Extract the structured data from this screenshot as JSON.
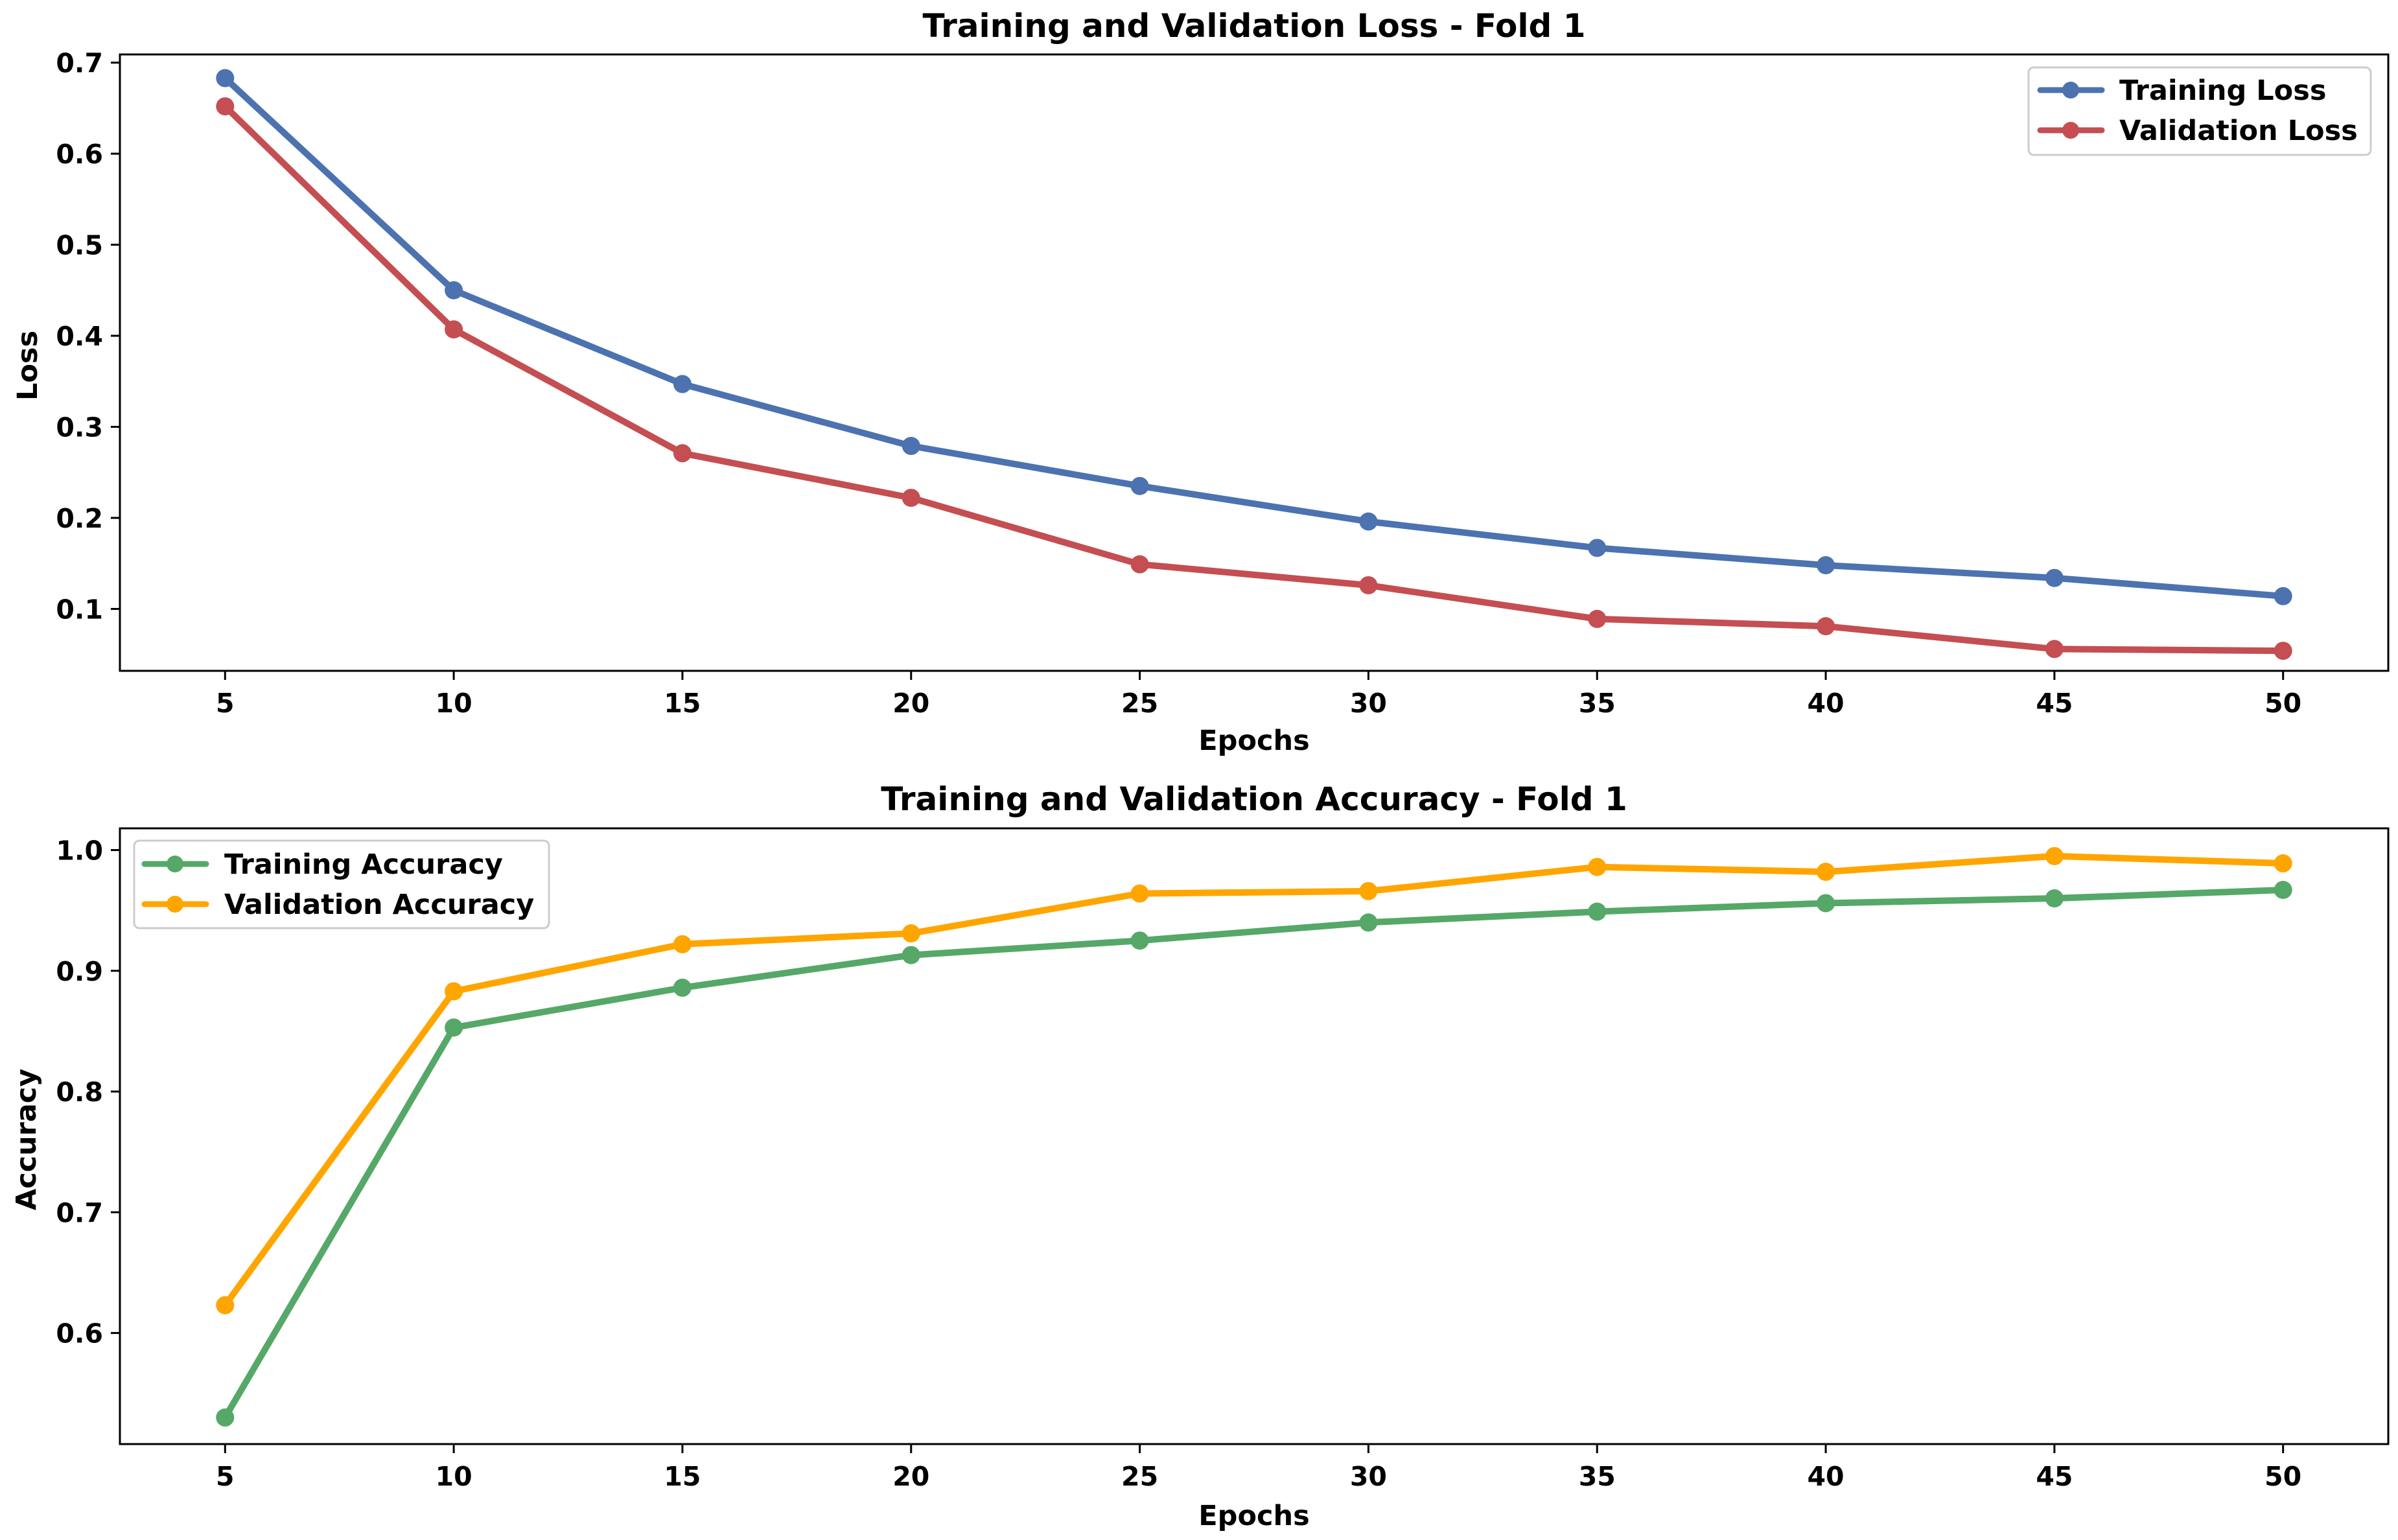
{
  "chart_data": [
    {
      "type": "line",
      "title": "Training and Validation Loss - Fold 1",
      "xlabel": "Epochs",
      "ylabel": "Loss",
      "x": [
        5,
        10,
        15,
        20,
        25,
        30,
        35,
        40,
        45,
        50
      ],
      "xlim": [
        2.7,
        52.3
      ],
      "ylim": [
        0.032,
        0.709
      ],
      "xticks": [
        5,
        10,
        15,
        20,
        25,
        30,
        35,
        40,
        45,
        50
      ],
      "yticks": [
        0.1,
        0.2,
        0.3,
        0.4,
        0.5,
        0.6,
        0.7
      ],
      "ytick_labels": [
        "0.1",
        "0.2",
        "0.3",
        "0.4",
        "0.5",
        "0.6",
        "0.7"
      ],
      "grid": false,
      "legend_position": "top-right",
      "series": [
        {
          "name": "Training Loss",
          "color": "#4c72b0",
          "values": [
            0.683,
            0.45,
            0.347,
            0.279,
            0.235,
            0.196,
            0.167,
            0.148,
            0.134,
            0.114
          ]
        },
        {
          "name": "Validation Loss",
          "color": "#c44e52",
          "values": [
            0.652,
            0.407,
            0.271,
            0.222,
            0.149,
            0.126,
            0.089,
            0.081,
            0.056,
            0.054
          ]
        }
      ]
    },
    {
      "type": "line",
      "title": "Training and Validation Accuracy - Fold 1",
      "xlabel": "Epochs",
      "ylabel": "Accuracy",
      "x": [
        5,
        10,
        15,
        20,
        25,
        30,
        35,
        40,
        45,
        50
      ],
      "xlim": [
        2.7,
        52.3
      ],
      "ylim": [
        0.508,
        1.018
      ],
      "xticks": [
        5,
        10,
        15,
        20,
        25,
        30,
        35,
        40,
        45,
        50
      ],
      "yticks": [
        0.6,
        0.7,
        0.8,
        0.9,
        1.0
      ],
      "ytick_labels": [
        "0.6",
        "0.7",
        "0.8",
        "0.9",
        "1.0"
      ],
      "grid": false,
      "legend_position": "top-left",
      "series": [
        {
          "name": "Training Accuracy",
          "color": "#55a868",
          "values": [
            0.53,
            0.853,
            0.886,
            0.913,
            0.925,
            0.94,
            0.949,
            0.956,
            0.96,
            0.967
          ]
        },
        {
          "name": "Validation Accuracy",
          "color": "#ffa500",
          "values": [
            0.623,
            0.883,
            0.922,
            0.931,
            0.964,
            0.966,
            0.986,
            0.982,
            0.995,
            0.989
          ]
        }
      ]
    }
  ]
}
